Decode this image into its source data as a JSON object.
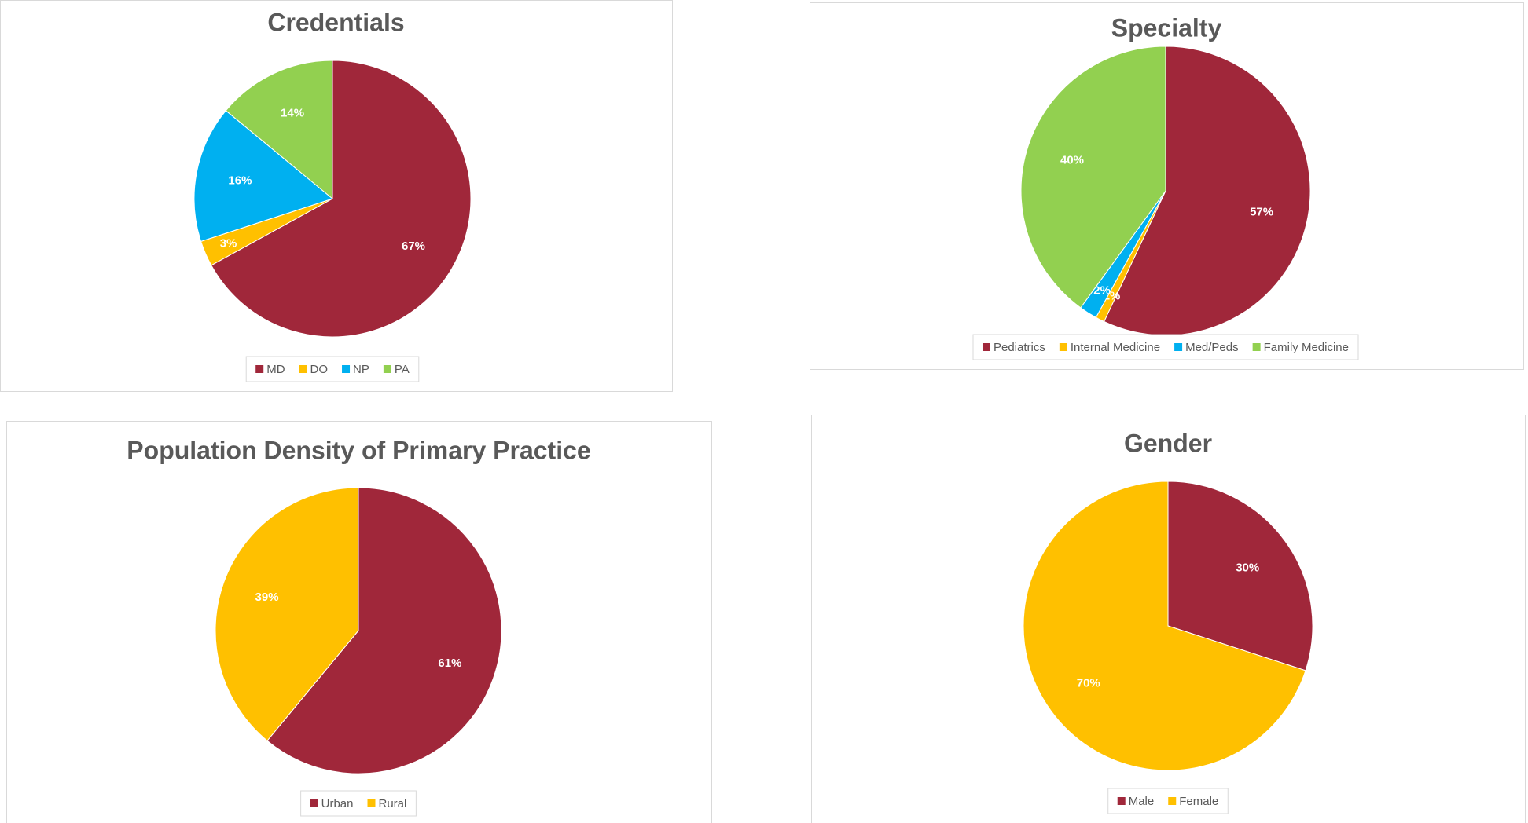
{
  "chart_data": [
    {
      "type": "pie",
      "title": "Credentials",
      "categories": [
        "MD",
        "DO",
        "NP",
        "PA"
      ],
      "values": [
        67,
        3,
        16,
        14
      ],
      "value_labels": [
        "67%",
        "3%",
        "16%",
        "14%"
      ],
      "colors": [
        "#a0273a",
        "#ffc000",
        "#00b0f0",
        "#92d050"
      ]
    },
    {
      "type": "pie",
      "title": "Specialty",
      "categories": [
        "Pediatrics",
        "Internal Medicine",
        "Med/Peds",
        "Family Medicine"
      ],
      "values": [
        57,
        1,
        2,
        40
      ],
      "value_labels": [
        "57%",
        "1%",
        "2%",
        "40%"
      ],
      "colors": [
        "#a0273a",
        "#ffc000",
        "#00b0f0",
        "#92d050"
      ]
    },
    {
      "type": "pie",
      "title": "Population Density of Primary Practice",
      "categories": [
        "Urban",
        "Rural"
      ],
      "values": [
        61,
        39
      ],
      "value_labels": [
        "61%",
        "39%"
      ],
      "colors": [
        "#a0273a",
        "#ffc000"
      ]
    },
    {
      "type": "pie",
      "title": "Gender",
      "categories": [
        "Male",
        "Female"
      ],
      "values": [
        30,
        70
      ],
      "value_labels": [
        "30%",
        "70%"
      ],
      "colors": [
        "#a0273a",
        "#ffc000"
      ]
    }
  ]
}
